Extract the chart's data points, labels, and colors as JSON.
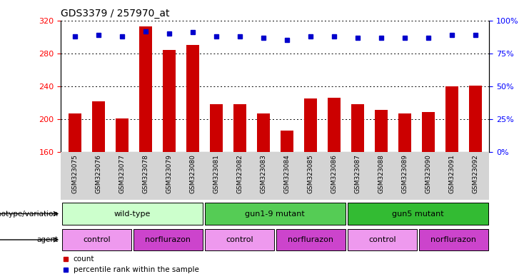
{
  "title": "GDS3379 / 257970_at",
  "samples": [
    "GSM323075",
    "GSM323076",
    "GSM323077",
    "GSM323078",
    "GSM323079",
    "GSM323080",
    "GSM323081",
    "GSM323082",
    "GSM323083",
    "GSM323084",
    "GSM323085",
    "GSM323086",
    "GSM323087",
    "GSM323088",
    "GSM323089",
    "GSM323090",
    "GSM323091",
    "GSM323092"
  ],
  "counts": [
    207,
    222,
    201,
    313,
    284,
    290,
    218,
    218,
    207,
    186,
    225,
    226,
    218,
    211,
    207,
    209,
    240,
    241
  ],
  "percentiles": [
    88,
    89,
    88,
    92,
    90,
    91,
    88,
    88,
    87,
    85,
    88,
    88,
    87,
    87,
    87,
    87,
    89,
    89
  ],
  "ylim_left": [
    160,
    320
  ],
  "ylim_right": [
    0,
    100
  ],
  "yticks_left": [
    160,
    200,
    240,
    280,
    320
  ],
  "yticks_right": [
    0,
    25,
    50,
    75,
    100
  ],
  "bar_color": "#cc0000",
  "dot_color": "#0000cc",
  "title_fontsize": 10,
  "tick_fontsize": 8,
  "sample_fontsize": 6.5,
  "genotype_groups": [
    {
      "label": "wild-type",
      "start": 0,
      "end": 6,
      "color": "#ccffcc"
    },
    {
      "label": "gun1-9 mutant",
      "start": 6,
      "end": 12,
      "color": "#55cc55"
    },
    {
      "label": "gun5 mutant",
      "start": 12,
      "end": 18,
      "color": "#33bb33"
    }
  ],
  "agent_groups": [
    {
      "label": "control",
      "start": 0,
      "end": 3,
      "color": "#ee99ee"
    },
    {
      "label": "norflurazon",
      "start": 3,
      "end": 6,
      "color": "#cc44cc"
    },
    {
      "label": "control",
      "start": 6,
      "end": 9,
      "color": "#ee99ee"
    },
    {
      "label": "norflurazon",
      "start": 9,
      "end": 12,
      "color": "#cc44cc"
    },
    {
      "label": "control",
      "start": 12,
      "end": 15,
      "color": "#ee99ee"
    },
    {
      "label": "norflurazon",
      "start": 15,
      "end": 18,
      "color": "#cc44cc"
    }
  ],
  "bar_color_legend": "#cc0000",
  "dot_color_legend": "#0000cc"
}
